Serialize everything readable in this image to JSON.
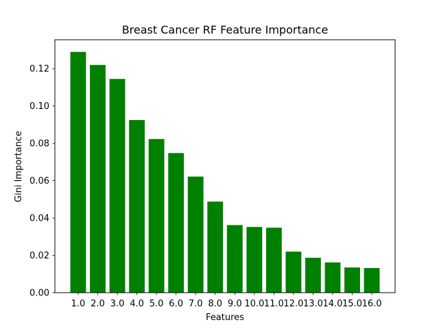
{
  "chart_data": {
    "type": "bar",
    "title": "Breast Cancer RF Feature Importance",
    "xlabel": "Features",
    "ylabel": "Gini Importance",
    "categories": [
      "1.0",
      "2.0",
      "3.0",
      "4.0",
      "5.0",
      "6.0",
      "7.0",
      "8.0",
      "9.0",
      "10.0",
      "11.0",
      "12.0",
      "13.0",
      "14.0",
      "15.0",
      "16.0"
    ],
    "values": [
      0.129,
      0.122,
      0.1145,
      0.0925,
      0.0823,
      0.0748,
      0.0622,
      0.0488,
      0.0362,
      0.0352,
      0.0348,
      0.022,
      0.0187,
      0.0162,
      0.0135,
      0.0132
    ],
    "ylim": [
      0,
      0.1355
    ],
    "yticks": [
      "0.00",
      "0.02",
      "0.04",
      "0.06",
      "0.08",
      "0.10",
      "0.12"
    ],
    "bar_color": "#008000",
    "grid": false
  }
}
